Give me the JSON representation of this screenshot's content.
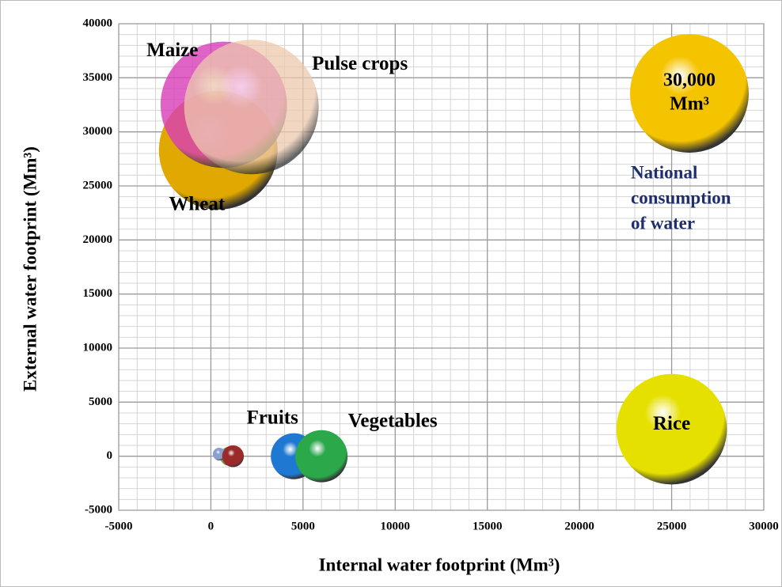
{
  "chart_data": {
    "type": "bubble",
    "xlabel": "Internal water footprint (Mm³)",
    "ylabel": "External water footprint (Mm³)",
    "labels": [
      "Wheat",
      "Maize",
      "Pulse crops",
      null,
      null,
      null,
      "Fruits",
      "Vegetables",
      "Rice"
    ],
    "x": [
      400,
      700,
      2200,
      1000,
      450,
      1200,
      4500,
      6000,
      25000
    ],
    "values": [
      28300,
      32500,
      32300,
      0,
      200,
      0,
      0,
      0,
      2500
    ],
    "sizes": [
      30000,
      34000,
      38500,
      770,
      340,
      1000,
      4500,
      5800,
      26000
    ],
    "colors": [
      "#e0a800",
      "#d83cb8",
      "#ecc9ae",
      "#7a9a3a",
      "#8aa0d0",
      "#9b2a2a",
      "#1f78d1",
      "#2aa84a",
      "#e6e000"
    ],
    "size_reference_value": 30000,
    "size_reference_label": [
      "30,000",
      "Mm³"
    ],
    "size_reference_color": "#f5c400",
    "size_reference_caption": [
      "National",
      "consumption",
      "of water"
    ],
    "xlim": [
      -5000,
      30000
    ],
    "xticks": [
      -5000,
      0,
      5000,
      10000,
      15000,
      20000,
      25000,
      30000
    ],
    "ylim": [
      -5000,
      40000
    ],
    "yticks": [
      -5000,
      0,
      5000,
      10000,
      15000,
      20000,
      25000,
      30000,
      35000,
      40000
    ],
    "grid": true
  }
}
